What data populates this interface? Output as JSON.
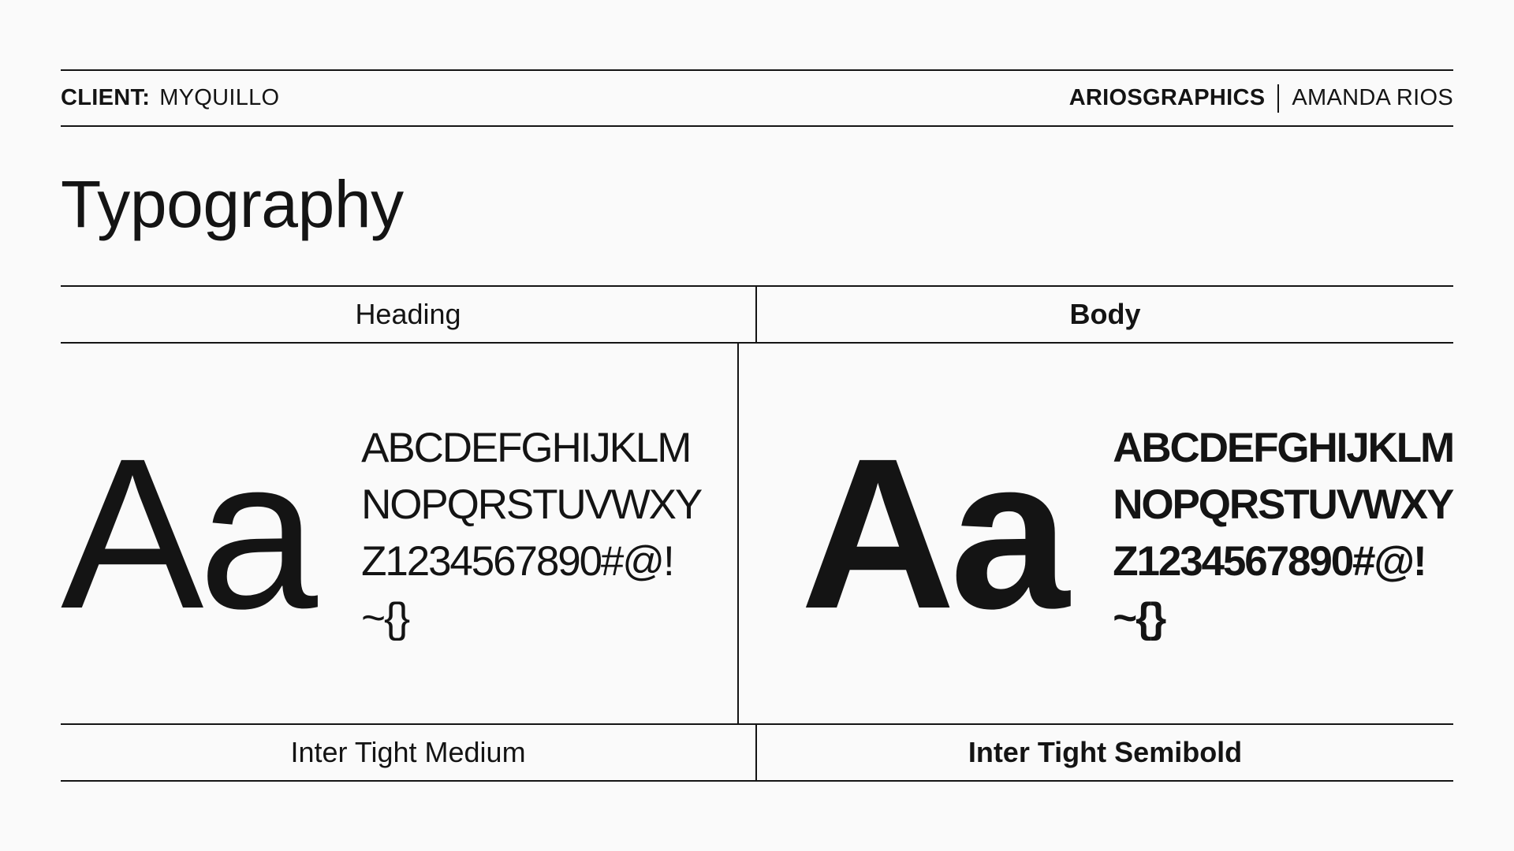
{
  "meta": {
    "client_label": "CLIENT:",
    "client_name": "MYQUILLO",
    "studio_name": "ARIOSGRAPHICS",
    "author_name": "AMANDA RIOS"
  },
  "page_title": "Typography",
  "table": {
    "columns": [
      {
        "header": "Heading",
        "specimen_display": "Aa",
        "alphabet_lines": [
          "ABCDEFGHIJKLM",
          "NOPQRSTUVWXY",
          "Z1234567890#@!",
          "~{}"
        ],
        "font_label": "Inter Tight Medium"
      },
      {
        "header": "Body",
        "specimen_display": "Aa",
        "alphabet_lines": [
          "ABCDEFGHIJKLM",
          "NOPQRSTUVWXY",
          "Z1234567890#@!",
          "~{}"
        ],
        "font_label": "Inter Tight Semibold"
      }
    ]
  },
  "colors": {
    "background": "#fafafa",
    "ink": "#141414"
  }
}
